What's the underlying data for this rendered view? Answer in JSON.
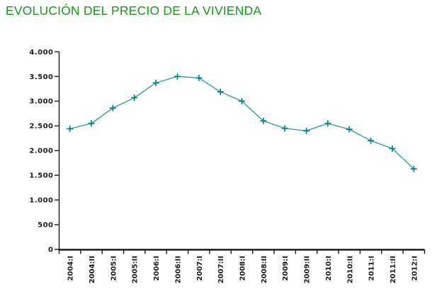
{
  "title": {
    "text": "EVOLUCIÓN DEL PRECIO DE LA VIVIENDA",
    "color": "#179917"
  },
  "chart_data": {
    "type": "line",
    "title": "EVOLUCIÓN DEL PRECIO DE LA VIVIENDA",
    "categories": [
      "2004:I",
      "2004:II",
      "2005:I",
      "2005:II",
      "2006:I",
      "2006:II",
      "2007:I",
      "2007:II",
      "2008:I",
      "2008:II",
      "2009:I",
      "2009:II",
      "2010:I",
      "2010:II",
      "2011:I",
      "2011:II",
      "2012:I"
    ],
    "values": [
      2440,
      2550,
      2860,
      3070,
      3370,
      3500,
      3470,
      3190,
      3000,
      2600,
      2450,
      2400,
      2550,
      2430,
      2200,
      2040,
      1630
    ],
    "xlabel": "",
    "ylabel": "",
    "ylim": [
      0,
      4000
    ],
    "ytick_step": 500,
    "ytick_labels": [
      "0",
      "500",
      "1.000",
      "1.500",
      "2.000",
      "2.500",
      "3.000",
      "3.500",
      "4.000"
    ],
    "grid": false,
    "legend": false,
    "marker": "plus",
    "line_color": "#33A1A1",
    "marker_color": "#047E7E",
    "axis_color": "#1a1a1a",
    "label_color": "#1a1a1a"
  }
}
